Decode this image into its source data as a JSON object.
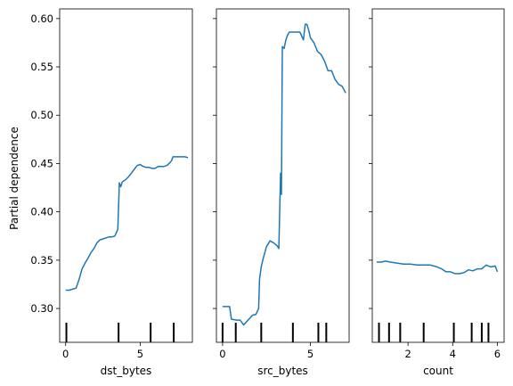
{
  "chart_data": {
    "type": "line",
    "shared_y": true,
    "ylabel": "Partial dependence",
    "ylim": [
      0.265,
      0.61
    ],
    "yticks": [
      0.3,
      0.35,
      0.4,
      0.45,
      0.5,
      0.55,
      0.6
    ],
    "ytick_labels": [
      "0.30",
      "0.35",
      "0.40",
      "0.45",
      "0.50",
      "0.55",
      "0.60"
    ],
    "line_color": "#1f77b4",
    "panels": [
      {
        "xlabel": "dst_bytes",
        "xlim": [
          -0.4,
          8.5
        ],
        "xticks": [
          0,
          5
        ],
        "xtick_labels": [
          "0",
          "5"
        ],
        "deciles": [
          0.05,
          3.55,
          5.7,
          7.25
        ],
        "x": [
          0.0,
          0.25,
          0.45,
          0.7,
          0.9,
          1.1,
          1.3,
          1.5,
          1.7,
          1.9,
          2.1,
          2.3,
          2.5,
          2.7,
          2.9,
          3.1,
          3.3,
          3.5,
          3.6,
          3.7,
          3.8,
          4.0,
          4.2,
          4.4,
          4.6,
          4.8,
          5.0,
          5.2,
          5.4,
          5.6,
          5.8,
          6.0,
          6.2,
          6.4,
          6.6,
          6.8,
          7.0,
          7.1,
          7.2,
          7.4,
          7.6,
          7.8,
          8.0,
          8.2
        ],
        "y": [
          0.319,
          0.319,
          0.32,
          0.321,
          0.33,
          0.341,
          0.347,
          0.352,
          0.358,
          0.362,
          0.368,
          0.371,
          0.372,
          0.373,
          0.374,
          0.374,
          0.375,
          0.382,
          0.43,
          0.426,
          0.431,
          0.433,
          0.436,
          0.44,
          0.444,
          0.448,
          0.449,
          0.447,
          0.446,
          0.446,
          0.445,
          0.445,
          0.447,
          0.447,
          0.447,
          0.448,
          0.451,
          0.453,
          0.457,
          0.457,
          0.457,
          0.457,
          0.457,
          0.456
        ]
      },
      {
        "xlabel": "src_bytes",
        "xlim": [
          -0.35,
          7.2
        ],
        "xticks": [
          0,
          5
        ],
        "xtick_labels": [
          "0",
          "5"
        ],
        "deciles": [
          0.0,
          0.75,
          2.2,
          4.0,
          5.45,
          5.9
        ],
        "x": [
          0.0,
          0.3,
          0.4,
          0.5,
          0.8,
          1.0,
          1.2,
          1.5,
          1.7,
          1.9,
          2.05,
          2.1,
          2.2,
          2.3,
          2.5,
          2.7,
          2.9,
          3.1,
          3.2,
          3.3,
          3.35,
          3.4,
          3.45,
          3.5,
          3.6,
          3.7,
          3.8,
          4.0,
          4.2,
          4.4,
          4.6,
          4.7,
          4.8,
          4.9,
          5.0,
          5.2,
          5.4,
          5.6,
          5.8,
          6.0,
          6.2,
          6.4,
          6.6,
          6.8,
          7.0
        ],
        "y": [
          0.302,
          0.302,
          0.302,
          0.289,
          0.288,
          0.288,
          0.283,
          0.289,
          0.293,
          0.294,
          0.3,
          0.33,
          0.343,
          0.351,
          0.364,
          0.37,
          0.368,
          0.365,
          0.362,
          0.44,
          0.418,
          0.571,
          0.57,
          0.569,
          0.578,
          0.583,
          0.586,
          0.586,
          0.586,
          0.586,
          0.578,
          0.594,
          0.594,
          0.588,
          0.58,
          0.575,
          0.566,
          0.563,
          0.556,
          0.546,
          0.546,
          0.537,
          0.532,
          0.53,
          0.523
        ]
      },
      {
        "xlabel": "count",
        "xlim": [
          0.4,
          6.3
        ],
        "xticks": [
          2,
          4,
          6
        ],
        "xtick_labels": [
          "2",
          "4",
          "6"
        ],
        "deciles": [
          0.7,
          1.15,
          1.65,
          2.7,
          4.05,
          4.85,
          5.3,
          5.6
        ],
        "x": [
          0.6,
          0.8,
          1.0,
          1.2,
          1.5,
          1.8,
          2.1,
          2.4,
          2.7,
          3.0,
          3.3,
          3.5,
          3.7,
          3.9,
          4.0,
          4.1,
          4.3,
          4.5,
          4.7,
          4.9,
          5.1,
          5.3,
          5.5,
          5.7,
          5.9,
          6.0
        ],
        "y": [
          0.348,
          0.348,
          0.349,
          0.348,
          0.347,
          0.346,
          0.346,
          0.345,
          0.345,
          0.345,
          0.343,
          0.341,
          0.338,
          0.338,
          0.337,
          0.336,
          0.336,
          0.337,
          0.34,
          0.339,
          0.341,
          0.341,
          0.345,
          0.343,
          0.344,
          0.338
        ]
      }
    ]
  }
}
